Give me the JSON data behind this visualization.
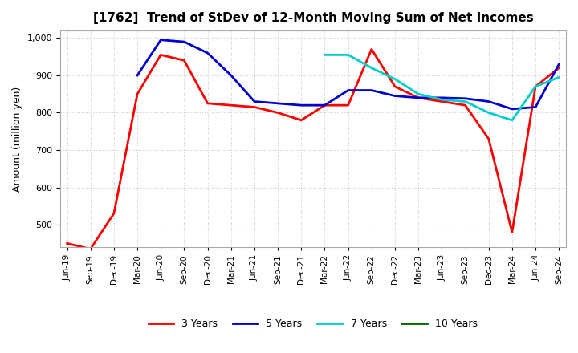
{
  "title": "[1762]  Trend of StDev of 12-Month Moving Sum of Net Incomes",
  "ylabel": "Amount (million yen)",
  "background_color": "#ffffff",
  "grid_color": "#cccccc",
  "ylim": [
    440,
    1020
  ],
  "yticks": [
    500,
    600,
    700,
    800,
    900,
    1000
  ],
  "xtick_labels": [
    "Jun-19",
    "Sep-19",
    "Dec-19",
    "Mar-20",
    "Jun-20",
    "Sep-20",
    "Dec-20",
    "Mar-21",
    "Jun-21",
    "Sep-21",
    "Dec-21",
    "Mar-22",
    "Jun-22",
    "Sep-22",
    "Dec-22",
    "Mar-23",
    "Jun-23",
    "Sep-23",
    "Dec-23",
    "Mar-24",
    "Jun-24",
    "Sep-24"
  ],
  "series": [
    {
      "name": "3 Years",
      "color": "#ff0000",
      "dates": [
        "Jun-19",
        "Sep-19",
        "Dec-19",
        "Mar-20",
        "Jun-20",
        "Sep-20",
        "Dec-20",
        "Mar-21",
        "Jun-21",
        "Sep-21",
        "Dec-21",
        "Mar-22",
        "Jun-22",
        "Sep-22",
        "Dec-22",
        "Mar-23",
        "Jun-23",
        "Sep-23",
        "Dec-23",
        "Mar-24",
        "Jun-24",
        "Sep-24"
      ],
      "values": [
        450,
        435,
        530,
        850,
        955,
        940,
        825,
        820,
        815,
        800,
        780,
        820,
        820,
        970,
        870,
        840,
        830,
        820,
        730,
        480,
        870,
        920
      ]
    },
    {
      "name": "5 Years",
      "color": "#0000cc",
      "dates": [
        "Jun-19",
        "Sep-19",
        "Dec-19",
        "Mar-20",
        "Jun-20",
        "Sep-20",
        "Dec-20",
        "Mar-21",
        "Jun-21",
        "Sep-21",
        "Dec-21",
        "Mar-22",
        "Jun-22",
        "Sep-22",
        "Dec-22",
        "Mar-23",
        "Jun-23",
        "Sep-23",
        "Dec-23",
        "Mar-24",
        "Jun-24",
        "Sep-24"
      ],
      "values": [
        null,
        null,
        null,
        900,
        995,
        990,
        960,
        900,
        830,
        825,
        820,
        820,
        860,
        860,
        845,
        840,
        840,
        838,
        830,
        810,
        815,
        930
      ]
    },
    {
      "name": "7 Years",
      "color": "#00cccc",
      "dates": [
        "Mar-22",
        "Jun-22",
        "Sep-22",
        "Dec-22",
        "Mar-23",
        "Jun-23",
        "Sep-23",
        "Dec-23",
        "Mar-24",
        "Jun-24",
        "Sep-24"
      ],
      "values": [
        955,
        955,
        920,
        890,
        850,
        835,
        830,
        800,
        780,
        870,
        895
      ]
    },
    {
      "name": "10 Years",
      "color": "#006600",
      "dates": [],
      "values": []
    }
  ],
  "legend_labels": [
    "3 Years",
    "5 Years",
    "7 Years",
    "10 Years"
  ],
  "legend_colors": [
    "#ff0000",
    "#0000cc",
    "#00cccc",
    "#006600"
  ]
}
